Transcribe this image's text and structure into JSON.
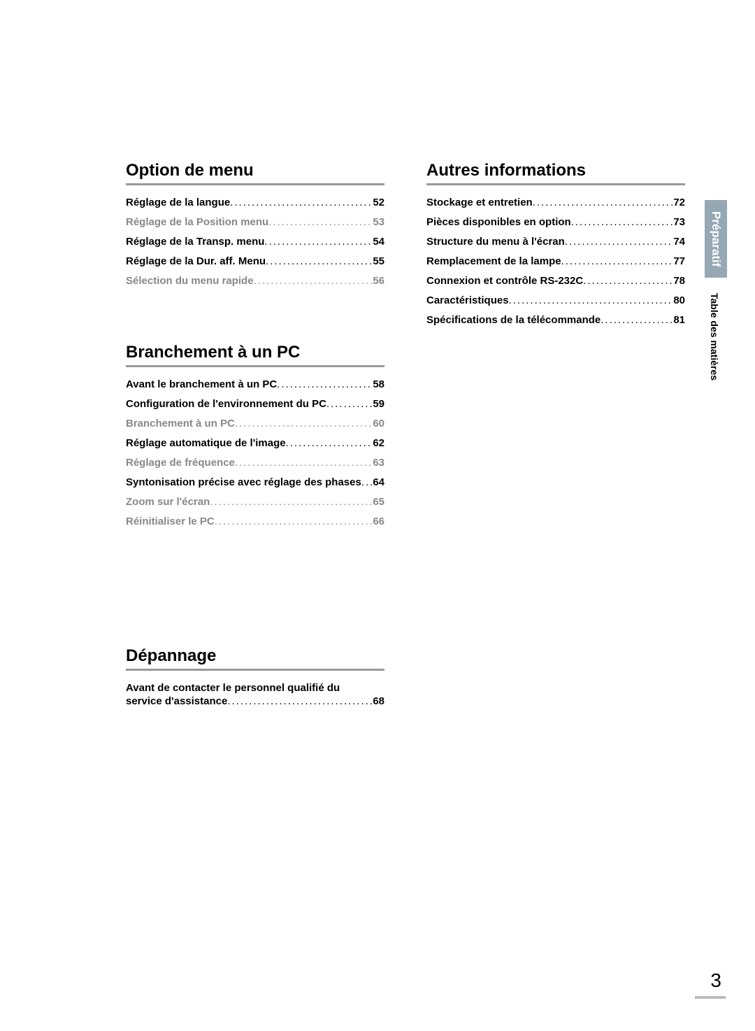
{
  "left_column": {
    "sections": [
      {
        "title": "Option de menu",
        "items": [
          {
            "label": "Réglage de la langue",
            "page": "52",
            "light": false
          },
          {
            "label": "Réglage de la Position menu",
            "page": "53",
            "light": true
          },
          {
            "label": "Réglage de la Transp. menu",
            "page": "54",
            "light": false
          },
          {
            "label": "Réglage de la Dur. aff. Menu",
            "page": "55",
            "light": false
          },
          {
            "label": "Sélection du menu rapide",
            "page": "56",
            "light": true
          }
        ]
      },
      {
        "title": "Branchement à un PC",
        "items": [
          {
            "label": "Avant le branchement à un PC",
            "page": "58",
            "light": false
          },
          {
            "label": "Configuration de l'environnement du PC",
            "page": "59",
            "light": false
          },
          {
            "label": "Branchement à un PC",
            "page": "60",
            "light": true
          },
          {
            "label": "Réglage automatique de l'image",
            "page": "62",
            "light": false
          },
          {
            "label": "Réglage de fréquence",
            "page": "63",
            "light": true
          },
          {
            "label": "Syntonisation précise avec réglage des phases",
            "page": "64",
            "light": false
          },
          {
            "label": "Zoom sur l'écran",
            "page": "65",
            "light": true
          },
          {
            "label": "Réinitialiser le PC",
            "page": "66",
            "light": true
          }
        ]
      },
      {
        "title": "Dépannage",
        "spacer": true,
        "items": [
          {
            "label": "Avant de contacter le personnel qualifié du",
            "page": "",
            "nobreak": true
          },
          {
            "label": "service d'assistance",
            "page": "68",
            "light": false
          }
        ]
      }
    ]
  },
  "right_column": {
    "sections": [
      {
        "title": "Autres informations",
        "items": [
          {
            "label": "Stockage et entretien",
            "page": "72",
            "light": false
          },
          {
            "label": "Pièces disponibles en option",
            "page": "73",
            "light": false
          },
          {
            "label": "Structure du menu à l'écran",
            "page": "74",
            "light": false
          },
          {
            "label": "Remplacement de la lampe",
            "page": "77",
            "light": false
          },
          {
            "label": "Connexion et contrôle RS-232C",
            "page": "78",
            "light": false
          },
          {
            "label": "Caractéristiques",
            "page": "80",
            "light": false
          },
          {
            "label": "Spécifications de la télécommande",
            "page": "81",
            "light": false
          }
        ]
      }
    ]
  },
  "tabs": {
    "active": "Préparatif",
    "inactive": "Table des matières"
  },
  "page_number": "3"
}
